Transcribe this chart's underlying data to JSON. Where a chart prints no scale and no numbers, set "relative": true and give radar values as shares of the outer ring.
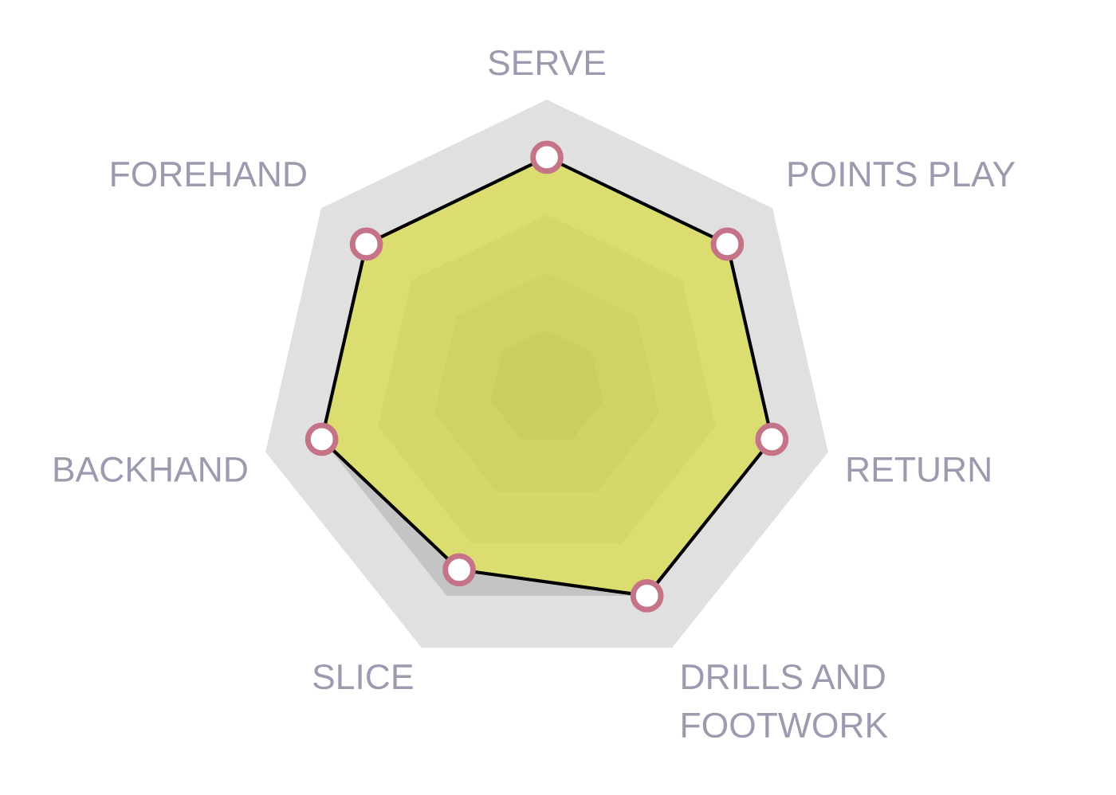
{
  "chart_data": {
    "type": "radar",
    "categories": [
      "SERVE",
      "POINTS PLAY",
      "RETURN",
      "DRILLS AND\nFOOTWORK",
      "SLICE",
      "BACKHAND",
      "FOREHAND"
    ],
    "relative": true,
    "series": [
      {
        "color": "#e4e554",
        "values": [
          0.8,
          0.8,
          0.8,
          0.8,
          0.7,
          0.8,
          0.8
        ]
      }
    ],
    "grid": true,
    "marker": "circle",
    "line_style": "solid"
  }
}
